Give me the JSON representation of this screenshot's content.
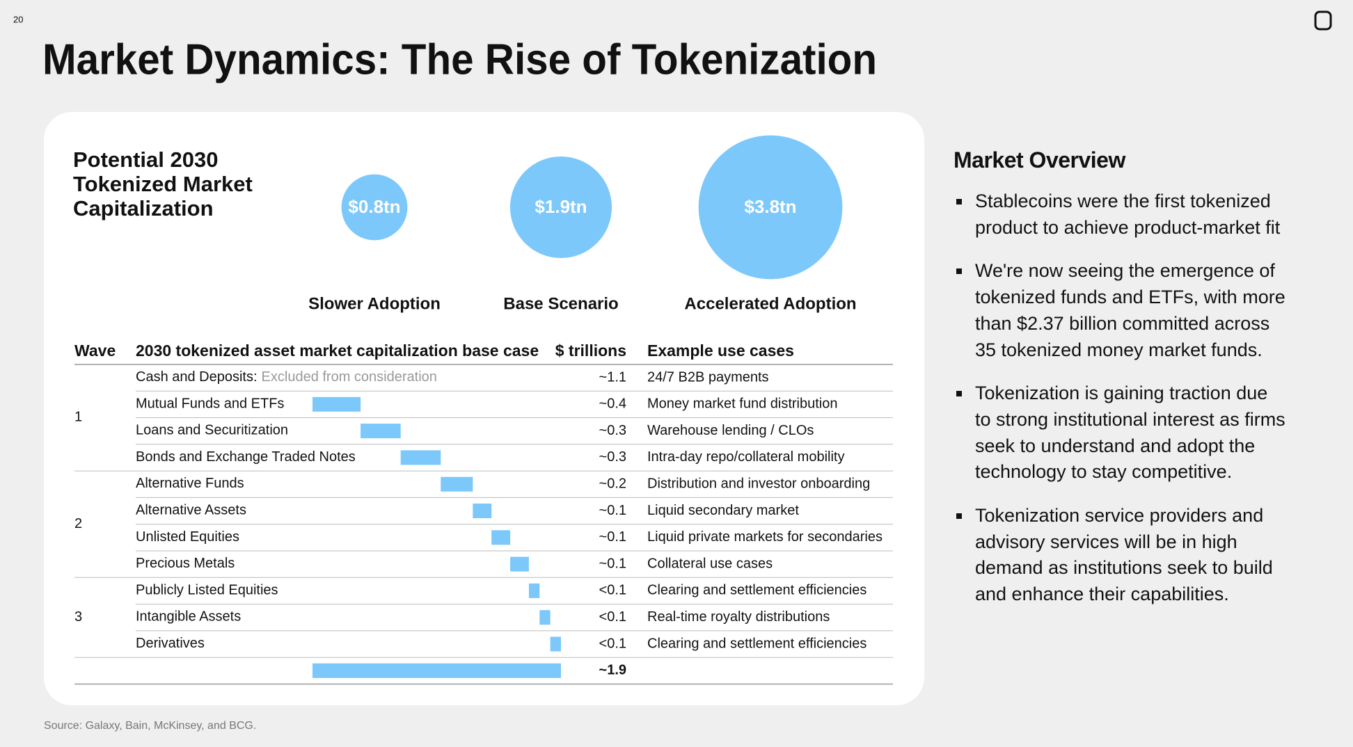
{
  "page_number": "20",
  "title": "Market Dynamics: The Rise of Tokenization",
  "card": {
    "title_lines": [
      "Potential 2030",
      "Tokenized Market",
      "Capitalization"
    ],
    "scenarios": [
      {
        "name": "Slower Adoption",
        "value": 0.8,
        "value_label": "$0.8tn"
      },
      {
        "name": "Base Scenario",
        "value": 1.9,
        "value_label": "$1.9tn"
      },
      {
        "name": "Accelerated Adoption",
        "value": 3.8,
        "value_label": "$3.8tn"
      }
    ],
    "table": {
      "headers": [
        "Wave",
        "2030 tokenized asset market capitalization base case",
        "$ trillions",
        "Example use cases"
      ],
      "groups": [
        {
          "wave": "1",
          "rows": [
            {
              "category": "Cash and Deposits:",
              "note": "Excluded from consideration",
              "value_label": "~1.1",
              "use_case": "24/7 B2B payments"
            },
            {
              "category": "Mutual Funds and ETFs",
              "value": 0.36,
              "value_label": "~0.4",
              "use_case": "Money market fund distribution"
            },
            {
              "category": "Loans and Securitization",
              "value": 0.3,
              "value_label": "~0.3",
              "use_case": "Warehouse lending / CLOs"
            },
            {
              "category": "Bonds and Exchange Traded Notes",
              "value": 0.3,
              "value_label": "~0.3",
              "use_case": "Intra-day repo/collateral mobility"
            }
          ]
        },
        {
          "wave": "2",
          "rows": [
            {
              "category": "Alternative Funds",
              "value": 0.24,
              "value_label": "~0.2",
              "use_case": "Distribution and investor onboarding"
            },
            {
              "category": "Alternative Assets",
              "value": 0.14,
              "value_label": "~0.1",
              "use_case": "Liquid secondary market"
            },
            {
              "category": "Unlisted Equities",
              "value": 0.14,
              "value_label": "~0.1",
              "use_case": "Liquid private markets for secondaries"
            },
            {
              "category": "Precious Metals",
              "value": 0.14,
              "value_label": "~0.1",
              "use_case": "Collateral use cases"
            }
          ]
        },
        {
          "wave": "3",
          "rows": [
            {
              "category": "Publicly Listed Equities",
              "value": 0.08,
              "value_label": "<0.1",
              "use_case": "Clearing and settlement efficiencies"
            },
            {
              "category": "Intangible Assets",
              "value": 0.08,
              "value_label": "<0.1",
              "use_case": "Real-time royalty distributions"
            },
            {
              "category": "Derivatives",
              "value": 0.08,
              "value_label": "<0.1",
              "use_case": "Clearing and settlement efficiencies"
            }
          ]
        }
      ],
      "total": {
        "value": 1.86,
        "value_label": "~1.9"
      }
    }
  },
  "source": "Source: Galaxy, Bain, McKinsey, and BCG.",
  "overview": {
    "title": "Market Overview",
    "bullets": [
      "Stablecoins were the first tokenized product to achieve product-market fit",
      "We're now seeing the emergence of tokenized funds and ETFs, with more than $2.37 billion committed across 35 tokenized money market funds.",
      "Tokenization is gaining traction due to strong institutional interest as firms seek to understand and adopt the technology to stay competitive.",
      "Tokenization service providers and advisory services will be in high demand as institutions seek to build and enhance their capabilities."
    ]
  }
}
